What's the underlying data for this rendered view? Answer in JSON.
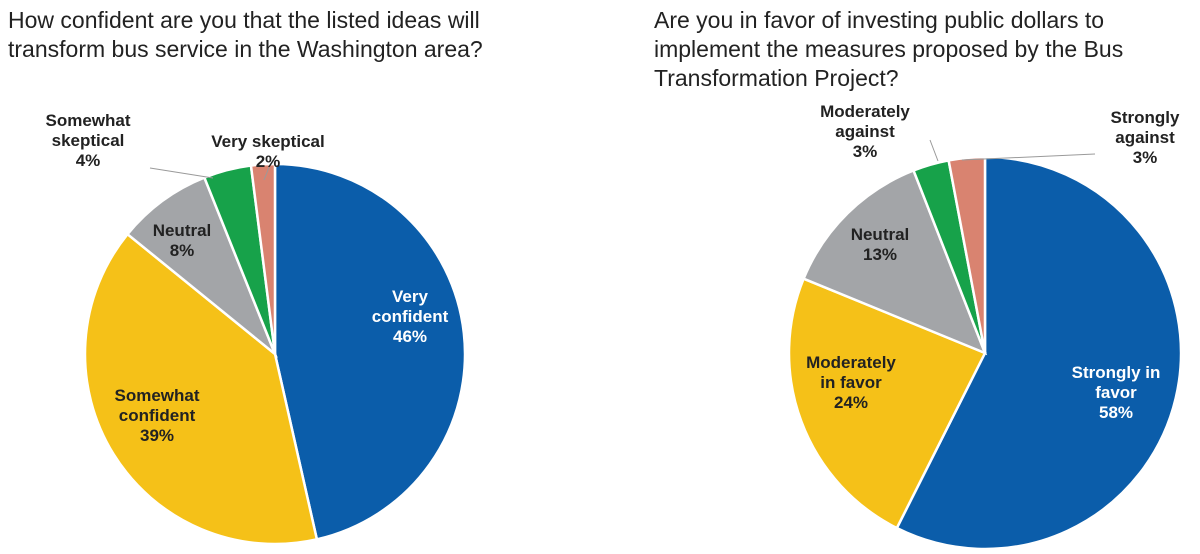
{
  "chart_data": [
    {
      "type": "pie",
      "title": "How confident are you that the listed ideas will transform bus service in the Washington area?",
      "slices": [
        {
          "label": [
            "Very",
            "confident"
          ],
          "name": "Very confident",
          "value": 46,
          "value_label": "46%",
          "color": "#0B5DAA",
          "text_color": "#ffffff"
        },
        {
          "label": [
            "Somewhat",
            "confident"
          ],
          "name": "Somewhat confident",
          "value": 39,
          "value_label": "39%",
          "color": "#F5C118",
          "text_color": "#222222"
        },
        {
          "label": [
            "Neutral"
          ],
          "name": "Neutral",
          "value": 8,
          "value_label": "8%",
          "color": "#A3A5A8",
          "text_color": "#222222"
        },
        {
          "label": [
            "Somewhat",
            "skeptical"
          ],
          "name": "Somewhat skeptical",
          "value": 4,
          "value_label": "4%",
          "color": "#17A24A",
          "text_color": "#222222"
        },
        {
          "label": [
            "Very skeptical"
          ],
          "name": "Very skeptical",
          "value": 2,
          "value_label": "2%",
          "color": "#D98370",
          "text_color": "#222222"
        }
      ]
    },
    {
      "type": "pie",
      "title": "Are you in favor of investing public dollars to implement the measures proposed by the Bus Transformation Project?",
      "slices": [
        {
          "label": [
            "Strongly in",
            "favor"
          ],
          "name": "Strongly in favor",
          "value": 58,
          "value_label": "58%",
          "color": "#0B5DAA",
          "text_color": "#ffffff"
        },
        {
          "label": [
            "Moderately",
            "in favor"
          ],
          "name": "Moderately in favor",
          "value": 24,
          "value_label": "24%",
          "color": "#F5C118",
          "text_color": "#222222"
        },
        {
          "label": [
            "Neutral"
          ],
          "name": "Neutral",
          "value": 13,
          "value_label": "13%",
          "color": "#A3A5A8",
          "text_color": "#222222"
        },
        {
          "label": [
            "Moderately",
            "against"
          ],
          "name": "Moderately against",
          "value": 3,
          "value_label": "3%",
          "color": "#17A24A",
          "text_color": "#222222"
        },
        {
          "label": [
            "Strongly",
            "against"
          ],
          "name": "Strongly against",
          "value": 3,
          "value_label": "3%",
          "color": "#D98370",
          "text_color": "#222222"
        }
      ]
    }
  ]
}
